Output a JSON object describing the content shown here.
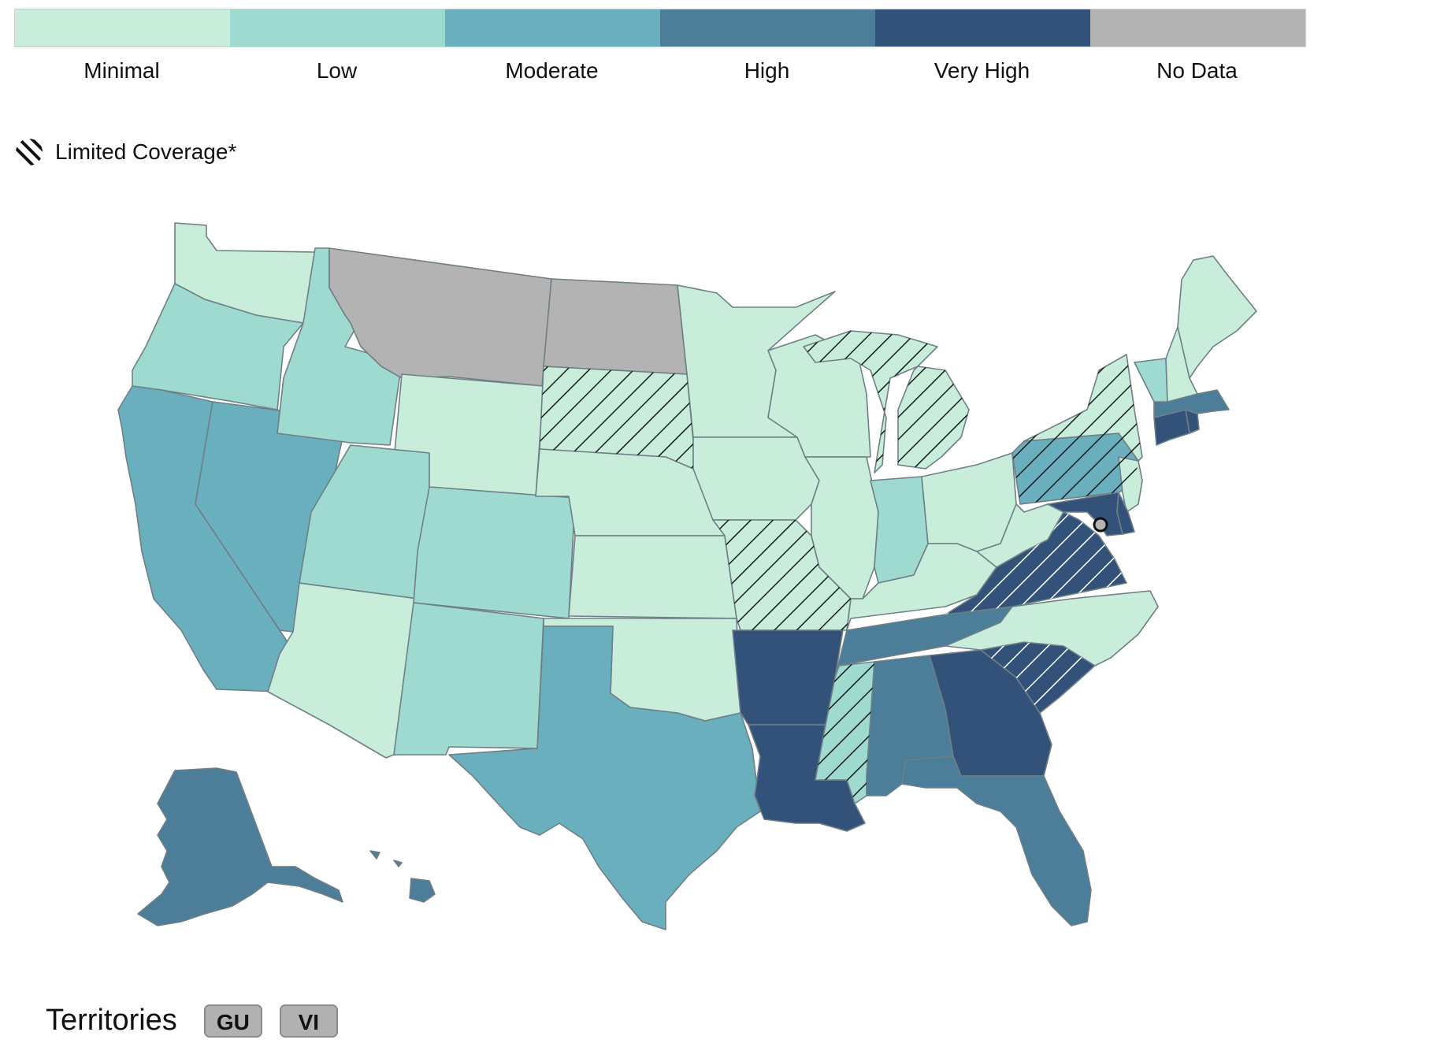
{
  "legend": {
    "items": [
      {
        "label": "Minimal",
        "color": "#c8eedb"
      },
      {
        "label": "Low",
        "color": "#9fdad1"
      },
      {
        "label": "Moderate",
        "color": "#6aafbd"
      },
      {
        "label": "High",
        "color": "#4c7d99"
      },
      {
        "label": "Very High",
        "color": "#33527a"
      },
      {
        "label": "No Data",
        "color": "#b3b3b3"
      }
    ],
    "limited_coverage_label": "Limited Coverage*"
  },
  "map": {
    "states": [
      {
        "id": "WA",
        "level": "Minimal"
      },
      {
        "id": "OR",
        "level": "Low"
      },
      {
        "id": "CA",
        "level": "Moderate"
      },
      {
        "id": "NV",
        "level": "Moderate"
      },
      {
        "id": "ID",
        "level": "Low"
      },
      {
        "id": "MT",
        "level": "No Data"
      },
      {
        "id": "WY",
        "level": "Minimal"
      },
      {
        "id": "UT",
        "level": "Low"
      },
      {
        "id": "AZ",
        "level": "Minimal"
      },
      {
        "id": "CO",
        "level": "Low"
      },
      {
        "id": "NM",
        "level": "Low"
      },
      {
        "id": "ND",
        "level": "No Data"
      },
      {
        "id": "SD",
        "level": "Minimal",
        "limited_coverage": true
      },
      {
        "id": "NE",
        "level": "Minimal"
      },
      {
        "id": "KS",
        "level": "Minimal"
      },
      {
        "id": "OK",
        "level": "Minimal"
      },
      {
        "id": "TX",
        "level": "Moderate"
      },
      {
        "id": "MN",
        "level": "Minimal"
      },
      {
        "id": "IA",
        "level": "Minimal"
      },
      {
        "id": "MO",
        "level": "Minimal",
        "limited_coverage": true
      },
      {
        "id": "AR",
        "level": "Very High"
      },
      {
        "id": "LA",
        "level": "Very High"
      },
      {
        "id": "WI",
        "level": "Minimal"
      },
      {
        "id": "IL",
        "level": "Minimal"
      },
      {
        "id": "MI",
        "level": "Minimal",
        "limited_coverage": true
      },
      {
        "id": "IN",
        "level": "Low"
      },
      {
        "id": "OH",
        "level": "Minimal"
      },
      {
        "id": "KY",
        "level": "Minimal"
      },
      {
        "id": "TN",
        "level": "High"
      },
      {
        "id": "MS",
        "level": "Low",
        "limited_coverage": true
      },
      {
        "id": "AL",
        "level": "High"
      },
      {
        "id": "GA",
        "level": "Very High"
      },
      {
        "id": "FL",
        "level": "High"
      },
      {
        "id": "SC",
        "level": "Very High",
        "limited_coverage": true
      },
      {
        "id": "NC",
        "level": "Minimal"
      },
      {
        "id": "VA",
        "level": "Very High",
        "limited_coverage": true
      },
      {
        "id": "WV",
        "level": "Minimal"
      },
      {
        "id": "PA",
        "level": "Moderate",
        "limited_coverage": true
      },
      {
        "id": "NY",
        "level": "Minimal",
        "limited_coverage": true
      },
      {
        "id": "NJ",
        "level": "Minimal"
      },
      {
        "id": "DE",
        "level": "Very High"
      },
      {
        "id": "MD",
        "level": "Very High"
      },
      {
        "id": "DC",
        "level": "No Data"
      },
      {
        "id": "CT",
        "level": "Very High"
      },
      {
        "id": "RI",
        "level": "Very High"
      },
      {
        "id": "MA",
        "level": "High"
      },
      {
        "id": "VT",
        "level": "Low"
      },
      {
        "id": "NH",
        "level": "Minimal"
      },
      {
        "id": "ME",
        "level": "Minimal"
      },
      {
        "id": "AK",
        "level": "High"
      },
      {
        "id": "HI",
        "level": "High"
      }
    ]
  },
  "territories": {
    "label": "Territories",
    "buttons": [
      "GU",
      "VI"
    ]
  }
}
